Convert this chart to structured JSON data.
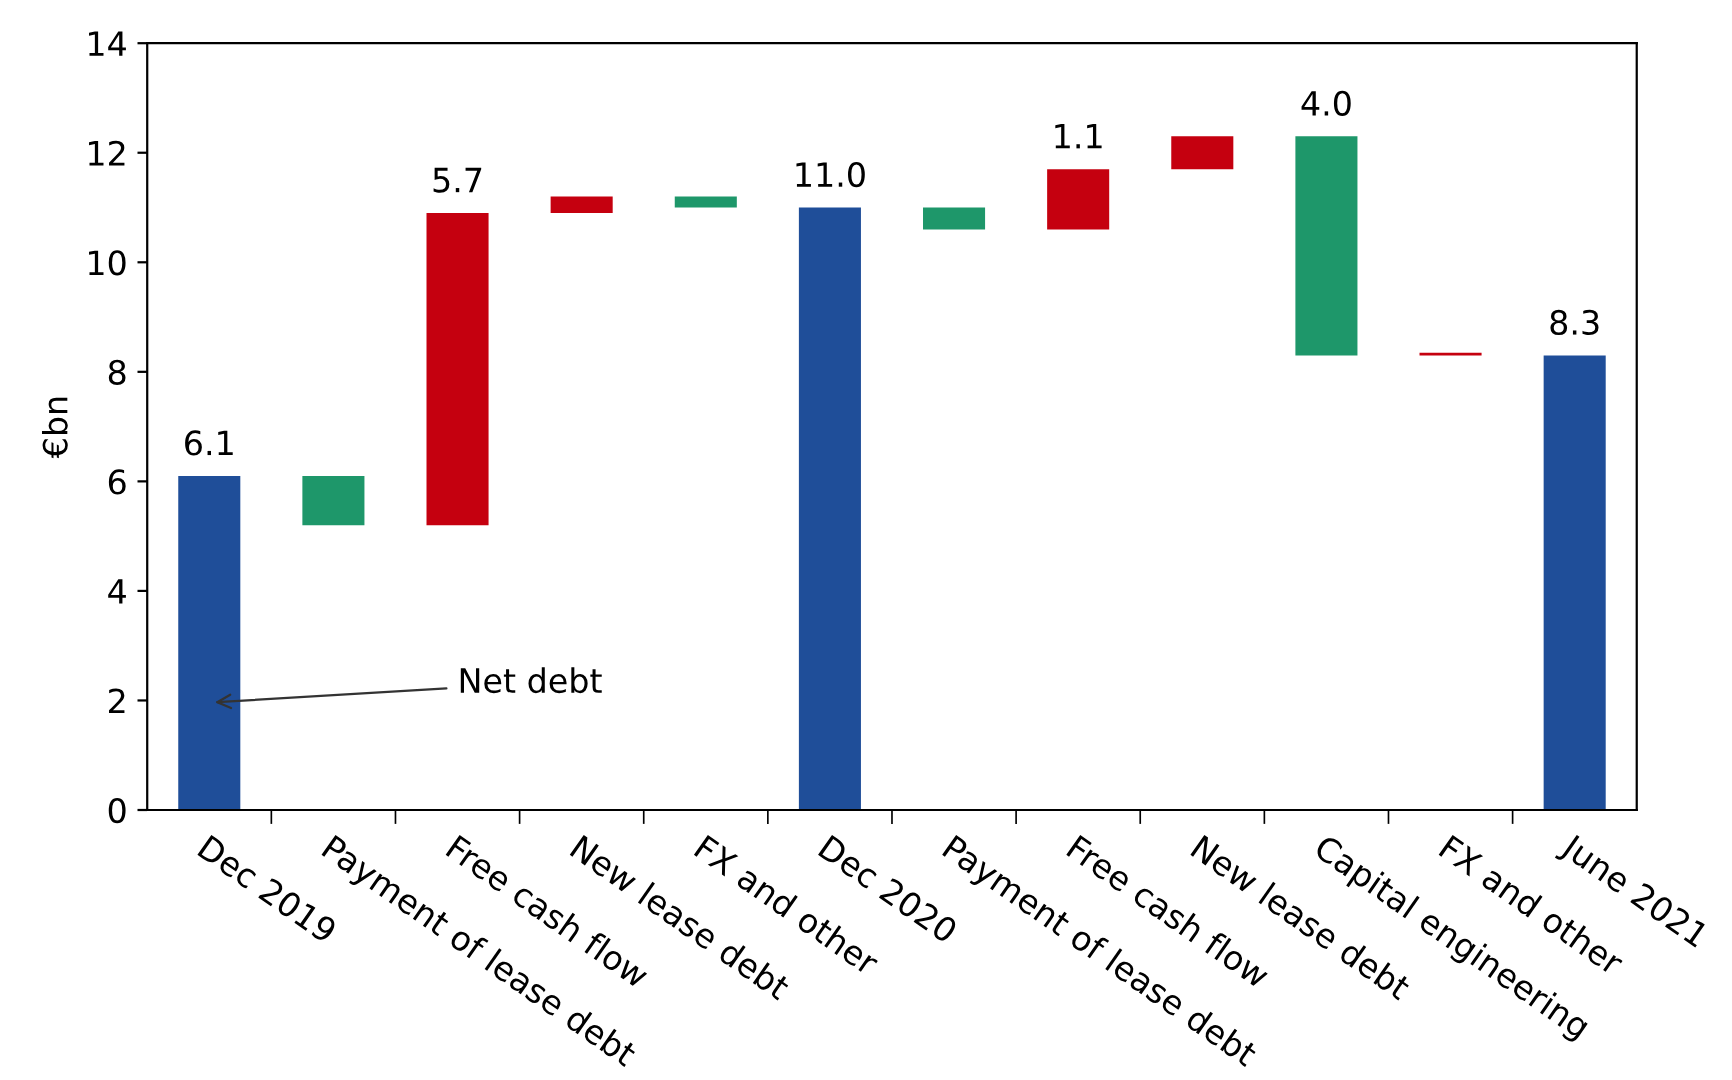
{
  "chart_data": {
    "type": "bar",
    "ylabel": "€bn",
    "categories": [
      "Dec 2019",
      "Payment of lease debt",
      "Free cash flow",
      "New lease debt",
      "FX and other",
      "Dec 2020",
      "Payment of lease debt",
      "Free cash flow",
      "New lease debt",
      "Capital engineering",
      "FX and other",
      "June 2021"
    ],
    "values": [
      6.1,
      0.9,
      5.7,
      0.3,
      0.2,
      11.0,
      0.4,
      1.1,
      0.6,
      4.0,
      0.05,
      8.3
    ],
    "base": [
      0,
      5.2,
      5.2,
      10.9,
      11.0,
      0,
      10.6,
      10.6,
      11.7,
      8.3,
      8.3,
      0
    ],
    "colors": [
      "#1f4e99",
      "#1e976a",
      "#c5000f",
      "#c5000f",
      "#1e976a",
      "#1f4e99",
      "#1e976a",
      "#c5000f",
      "#c5000f",
      "#1e976a",
      "#c5000f",
      "#1f4e99"
    ],
    "value_labels": [
      "6.1",
      null,
      "5.7",
      null,
      null,
      "11.0",
      null,
      "1.1",
      null,
      "4.0",
      null,
      "8.3"
    ],
    "ylim": [
      0,
      14
    ],
    "yticks": [
      0,
      2,
      4,
      6,
      8,
      10,
      12,
      14
    ],
    "grid": false,
    "legend": false,
    "annotations": [
      "Net debt"
    ]
  }
}
